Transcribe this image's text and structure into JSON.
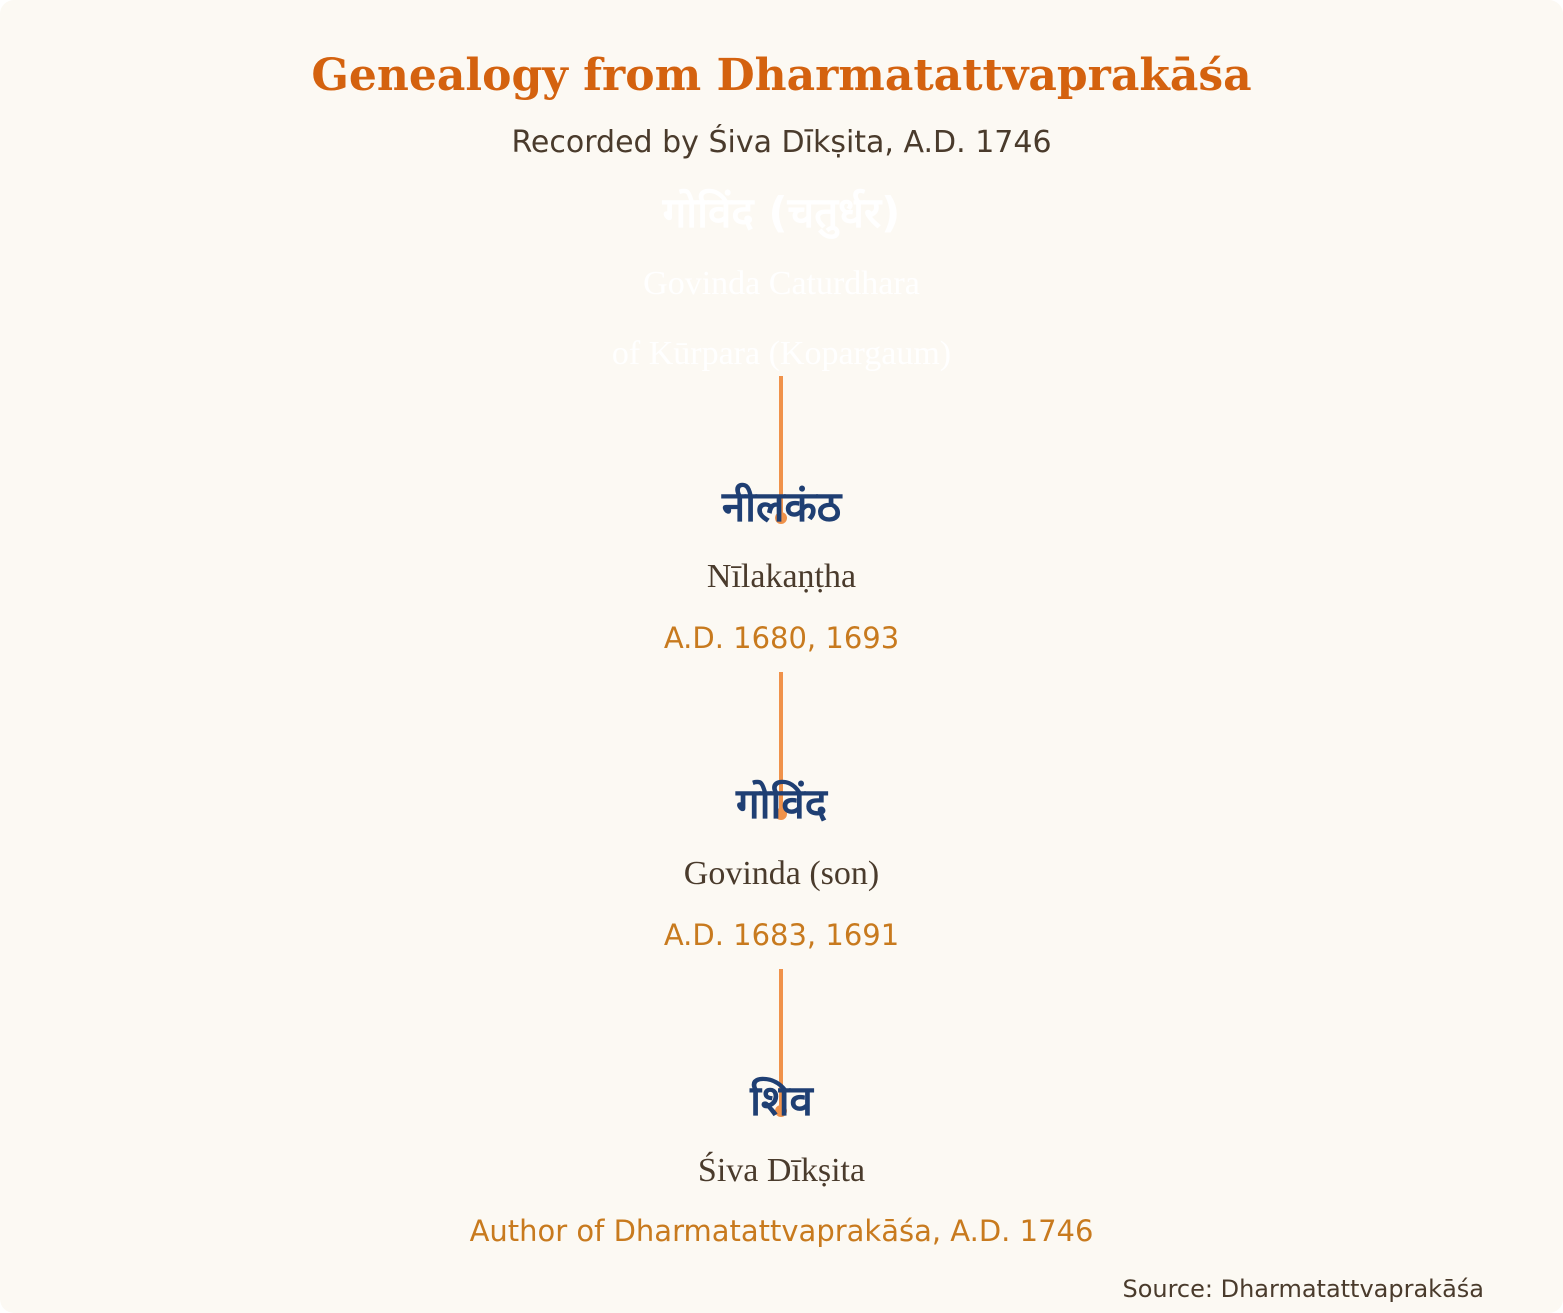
{
  "header": {
    "title": "Genealogy from Dharmatattvaprakāśa",
    "subtitle": "Recorded by Śiva Dīkṣita, A.D. 1746"
  },
  "nodes": [
    {
      "devanagari": "गोविंद (चतुर्धर)",
      "name": "Govinda Caturdhara",
      "detail": "of Kūrpara (Kopargaum)"
    },
    {
      "devanagari": "नीलकंठ",
      "name": "Nīlakaṇṭha",
      "dates": "A.D. 1680, 1693"
    },
    {
      "devanagari": "गोविंद",
      "name": "Govinda (son)",
      "dates": "A.D. 1683, 1691"
    },
    {
      "devanagari": "शिव",
      "name": "Śiva Dīkṣita",
      "dates": "Author of Dharmatattvaprakāśa, A.D. 1746"
    }
  ],
  "footer": {
    "source": "Source: Dharmatattvaprakāśa"
  },
  "colors": {
    "title": "#d4620f",
    "devanagari": "#1f3f73",
    "dates": "#c87a1e",
    "connector": "#f0924a",
    "background": "#fcf9f3"
  }
}
